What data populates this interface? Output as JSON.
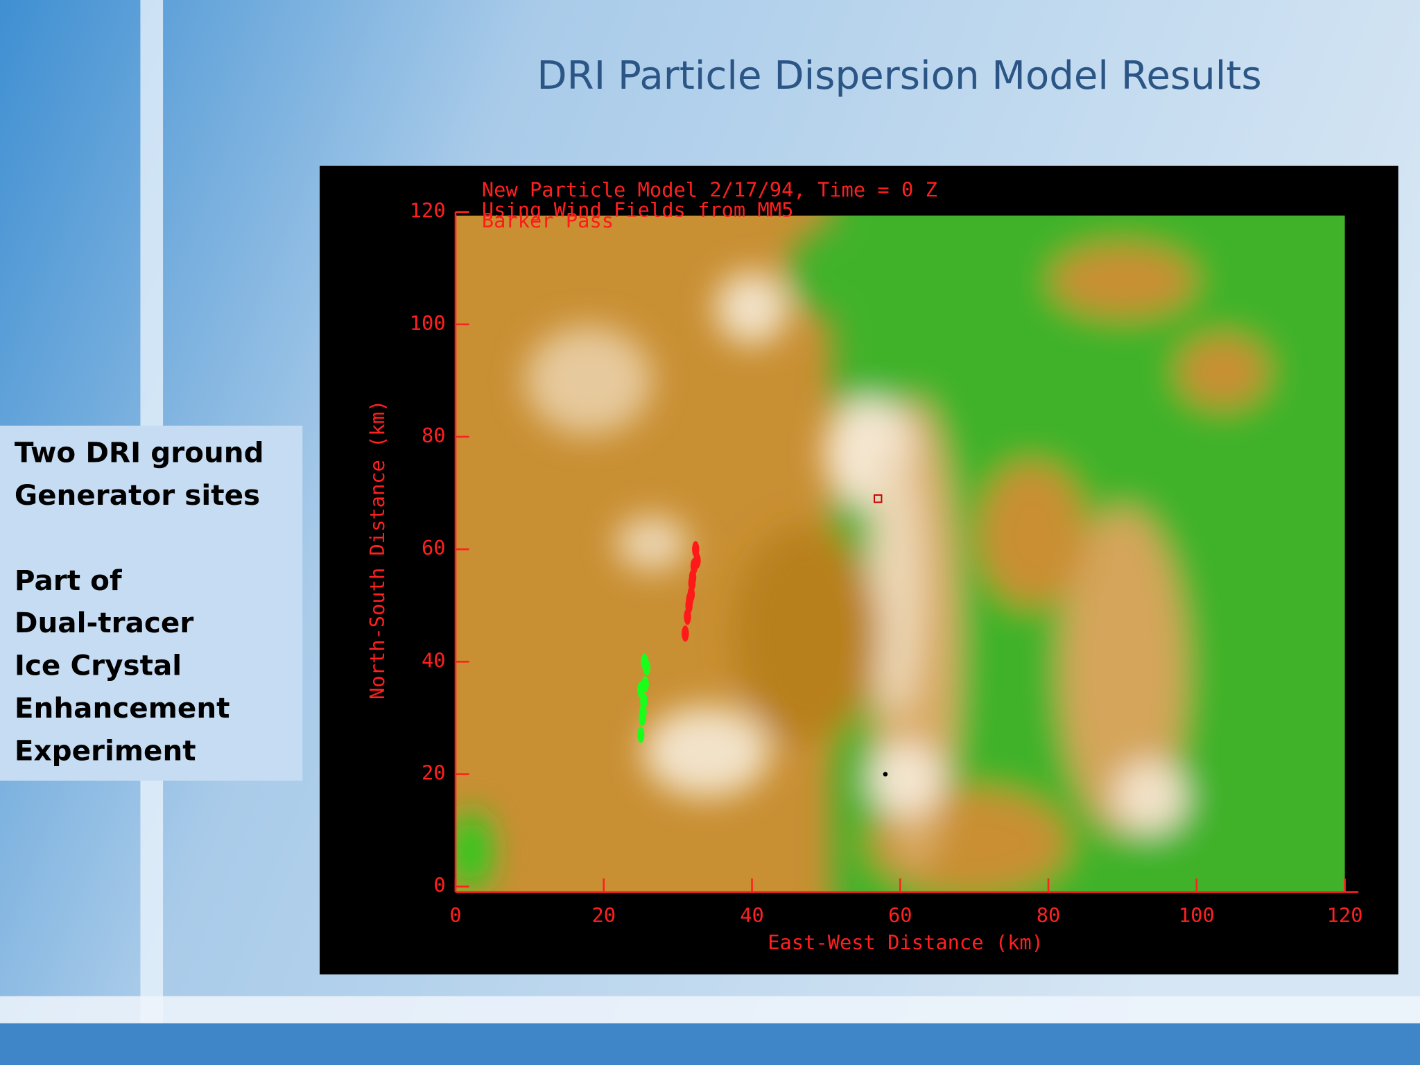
{
  "title": "DRI Particle Dispersion Model Results",
  "sidebar": {
    "paragraphs": [
      [
        "Two DRI ground",
        "Generator sites"
      ],
      [
        "Part of",
        "Dual-tracer",
        "Ice Crystal",
        "Enhancement",
        "Experiment"
      ]
    ]
  },
  "chart_data": {
    "type": "scatter",
    "title": [
      "New Particle Model 2/17/94, Time = 0 Z",
      "Using Wind Fields from MM5"
    ],
    "xlabel": "East-West Distance (km)",
    "ylabel": "North-South Distance (km)",
    "xlim": [
      0,
      120
    ],
    "ylim": [
      0,
      120
    ],
    "xticks": [
      0,
      20,
      40,
      60,
      80,
      100,
      120
    ],
    "yticks": [
      0,
      20,
      40,
      60,
      80,
      100,
      120
    ],
    "axis_color": "#ff2020",
    "series": [
      {
        "name": "Barker Pass",
        "color": "#ff1a1a",
        "x": [
          31,
          31.3,
          31.6,
          31.9,
          32.2,
          32.4,
          32,
          31.5,
          32.6,
          31.8
        ],
        "y": [
          45,
          48,
          51,
          54,
          57,
          60,
          55,
          50,
          58,
          52
        ]
      },
      {
        "color": "#1aff1a",
        "x": [
          25,
          25.2,
          25.4,
          25.6,
          25.8,
          25.5,
          25,
          25.3
        ],
        "y": [
          27,
          30,
          33,
          36,
          39,
          40,
          35,
          31
        ]
      }
    ],
    "markers": [
      {
        "x": 57,
        "y": 69,
        "shape": "square"
      },
      {
        "x": 58,
        "y": 20,
        "shape": "dot"
      }
    ]
  }
}
